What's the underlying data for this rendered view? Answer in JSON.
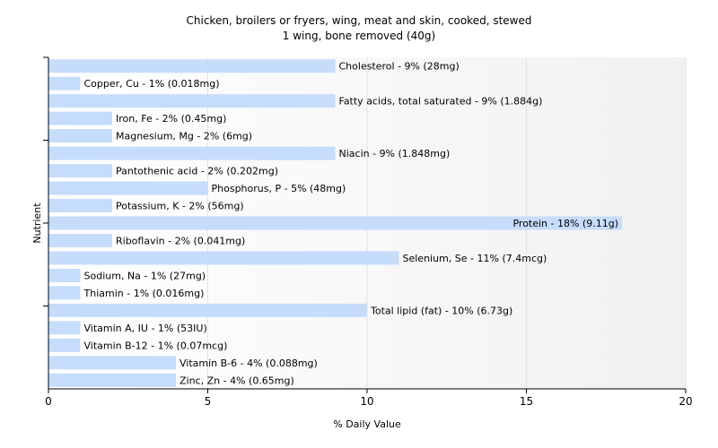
{
  "chart_data": {
    "type": "bar",
    "orientation": "horizontal",
    "title": "Chicken, broilers or fryers, wing, meat and skin, cooked, stewed",
    "subtitle": "1 wing, bone removed (40g)",
    "xlabel": "% Daily Value",
    "ylabel": "Nutrient",
    "xlim": [
      0,
      20
    ],
    "xticks": [
      0,
      5,
      10,
      15,
      20
    ],
    "grid": true,
    "bar_color": "#c6dcfb",
    "bars": [
      {
        "name": "Cholesterol",
        "value": 9,
        "label": "Cholesterol - 9% (28mg)"
      },
      {
        "name": "Copper, Cu",
        "value": 1,
        "label": "Copper, Cu - 1% (0.018mg)"
      },
      {
        "name": "Fatty acids, total saturated",
        "value": 9,
        "label": "Fatty acids, total saturated - 9% (1.884g)"
      },
      {
        "name": "Iron, Fe",
        "value": 2,
        "label": "Iron, Fe - 2% (0.45mg)"
      },
      {
        "name": "Magnesium, Mg",
        "value": 2,
        "label": "Magnesium, Mg - 2% (6mg)"
      },
      {
        "name": "Niacin",
        "value": 9,
        "label": "Niacin - 9% (1.848mg)"
      },
      {
        "name": "Pantothenic acid",
        "value": 2,
        "label": "Pantothenic acid - 2% (0.202mg)"
      },
      {
        "name": "Phosphorus, P",
        "value": 5,
        "label": "Phosphorus, P - 5% (48mg)"
      },
      {
        "name": "Potassium, K",
        "value": 2,
        "label": "Potassium, K - 2% (56mg)"
      },
      {
        "name": "Protein",
        "value": 18,
        "label": "Protein - 18% (9.11g)"
      },
      {
        "name": "Riboflavin",
        "value": 2,
        "label": "Riboflavin - 2% (0.041mg)"
      },
      {
        "name": "Selenium, Se",
        "value": 11,
        "label": "Selenium, Se - 11% (7.4mcg)"
      },
      {
        "name": "Sodium, Na",
        "value": 1,
        "label": "Sodium, Na - 1% (27mg)"
      },
      {
        "name": "Thiamin",
        "value": 1,
        "label": "Thiamin - 1% (0.016mg)"
      },
      {
        "name": "Total lipid (fat)",
        "value": 10,
        "label": "Total lipid (fat) - 10% (6.73g)"
      },
      {
        "name": "Vitamin A, IU",
        "value": 1,
        "label": "Vitamin A, IU - 1% (53IU)"
      },
      {
        "name": "Vitamin B-12",
        "value": 1,
        "label": "Vitamin B-12 - 1% (0.07mcg)"
      },
      {
        "name": "Vitamin B-6",
        "value": 4,
        "label": "Vitamin B-6 - 4% (0.088mg)"
      },
      {
        "name": "Zinc, Zn",
        "value": 4,
        "label": "Zinc, Zn - 4% (0.65mg)"
      }
    ]
  }
}
